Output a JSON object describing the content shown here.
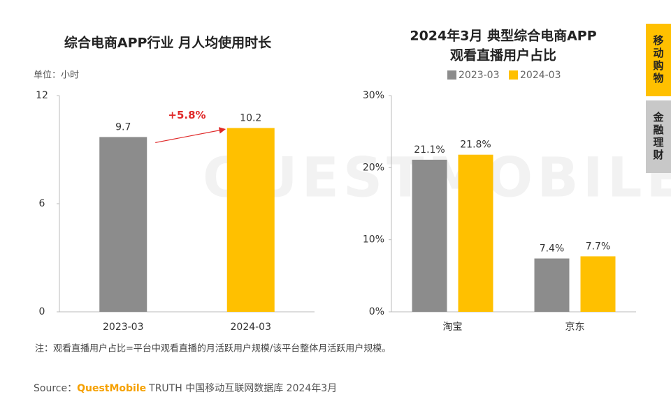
{
  "chart_data": [
    {
      "type": "bar",
      "title": "综合电商APP行业 月人均使用时长",
      "unit": "单位：小时",
      "categories": [
        "2023-03",
        "2024-03"
      ],
      "values": [
        9.7,
        10.2
      ],
      "colors": [
        "#8c8c8c",
        "#ffc000"
      ],
      "ylim": [
        0,
        12
      ],
      "yticks": [
        0,
        6,
        12
      ],
      "annotation": "+5.8%",
      "annotation_color": "#e02a2a"
    },
    {
      "type": "grouped_bar",
      "title": [
        "2024年3月 典型综合电商APP",
        "观看直播用户占比"
      ],
      "categories": [
        "淘宝",
        "京东"
      ],
      "series": [
        {
          "name": "2023-03",
          "color": "#8c8c8c",
          "values": [
            21.1,
            7.4
          ],
          "value_labels": [
            "21.1%",
            "7.4%"
          ]
        },
        {
          "name": "2024-03",
          "color": "#ffc000",
          "values": [
            21.8,
            7.7
          ],
          "value_labels": [
            "21.8%",
            "7.7%"
          ]
        }
      ],
      "ylim": [
        0,
        30
      ],
      "yticks": [
        {
          "value": 0,
          "label": "0%"
        },
        {
          "value": 10,
          "label": "10%"
        },
        {
          "value": 20,
          "label": "20%"
        },
        {
          "value": 30,
          "label": "30%"
        }
      ]
    }
  ],
  "watermark": "QUESTMOBILE",
  "tabs": [
    "移动购物",
    "金融理财"
  ],
  "note": "注：观看直播用户占比=平台中观看直播的月活跃用户规模/该平台整体月活跃用户规模。",
  "source": {
    "label": "Source：",
    "brand": "QuestMobile",
    "text": "TRUTH 中国移动互联网数据库 2024年3月"
  }
}
